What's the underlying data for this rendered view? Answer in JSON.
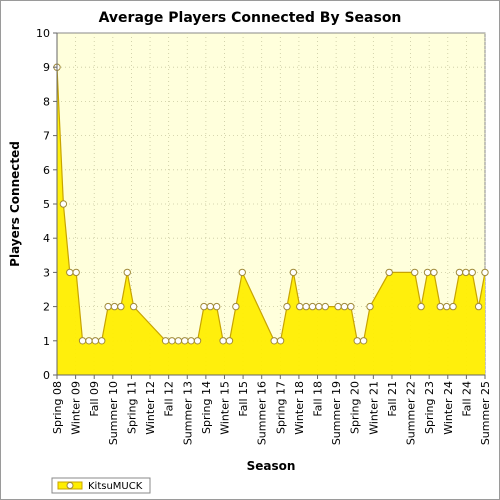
{
  "chart_data": {
    "type": "area",
    "title": "Average Players Connected By Season",
    "xlabel": "Season",
    "ylabel": "Players Connected",
    "ylim": [
      0,
      10
    ],
    "yticks": [
      0,
      1,
      2,
      3,
      4,
      5,
      6,
      7,
      8,
      9,
      10
    ],
    "grid": true,
    "legend_position": "bottom-left",
    "colors": {
      "fill": "#ffee00",
      "line": "#c8a400",
      "marker_fill": "#ffffff",
      "marker_stroke": "#a08a3a",
      "plot_bg": "#ffffdc",
      "grid": "#c8c8a0"
    },
    "x_tick_labels": [
      "Spring 08",
      "Winter 09",
      "Fall 09",
      "Summer 10",
      "Spring 11",
      "Winter 12",
      "Fall 12",
      "Summer 13",
      "Spring 14",
      "Winter 15",
      "Fall 15",
      "Summer 16",
      "Spring 17",
      "Winter 18",
      "Fall 18",
      "Summer 19",
      "Spring 20",
      "Winter 21",
      "Fall 21",
      "Summer 22",
      "Spring 23",
      "Winter 24",
      "Fall 24",
      "Summer 25"
    ],
    "series": [
      {
        "name": "KitsuMUCK",
        "values": [
          9,
          5,
          3,
          3,
          1,
          1,
          1,
          1,
          2,
          2,
          2,
          3,
          2,
          null,
          null,
          null,
          null,
          1,
          1,
          1,
          1,
          1,
          1,
          2,
          2,
          2,
          1,
          1,
          2,
          3,
          null,
          null,
          null,
          null,
          1,
          1,
          2,
          3,
          2,
          2,
          2,
          2,
          2,
          null,
          2,
          2,
          2,
          1,
          1,
          2,
          null,
          null,
          3,
          null,
          null,
          null,
          3,
          2,
          3,
          3,
          2,
          2,
          2,
          3,
          3,
          3,
          2,
          3
        ]
      }
    ]
  }
}
